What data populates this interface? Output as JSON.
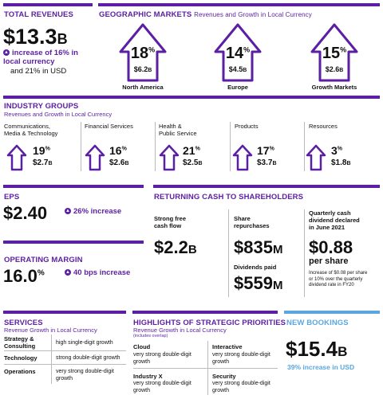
{
  "total_revenues": {
    "title": "TOTAL REVENUES",
    "value": "$13.3",
    "unit": "B",
    "increase": "increase of 16% in local currency",
    "usd": "and 21% in USD"
  },
  "geo": {
    "title": "GEOGRAPHIC MARKETS",
    "subtitle": "Revenues and Growth in Local Currency",
    "markets": [
      {
        "pct": "18",
        "amt": "$6.2",
        "unit": "B",
        "name": "North America"
      },
      {
        "pct": "14",
        "amt": "$4.5",
        "unit": "B",
        "name": "Europe"
      },
      {
        "pct": "15",
        "amt": "$2.6",
        "unit": "B",
        "name": "Growth Markets"
      }
    ]
  },
  "industry": {
    "title": "INDUSTRY GROUPS",
    "subtitle": "Revenues and Growth in Local Currency",
    "groups": [
      {
        "name_line1": "Communications,",
        "name_line2": "Media & Technology",
        "pct": "19",
        "amt": "$2.7",
        "unit": "B"
      },
      {
        "name_line1": "Financial Services",
        "name_line2": "",
        "pct": "16",
        "amt": "$2.6",
        "unit": "B"
      },
      {
        "name_line1": "Health &",
        "name_line2": "Public Service",
        "pct": "21",
        "amt": "$2.5",
        "unit": "B"
      },
      {
        "name_line1": "Products",
        "name_line2": "",
        "pct": "17",
        "amt": "$3.7",
        "unit": "B"
      },
      {
        "name_line1": "Resources",
        "name_line2": "",
        "pct": "3",
        "amt": "$1.8",
        "unit": "B"
      }
    ]
  },
  "eps": {
    "title": "EPS",
    "value": "$2.40",
    "increase": "26% increase"
  },
  "op_margin": {
    "title": "OPERATING MARGIN",
    "value": "16.0",
    "pct_sign": "%",
    "increase": "40 bps increase"
  },
  "cash": {
    "title": "RETURNING CASH TO SHAREHOLDERS",
    "fcf_label_1": "Strong free",
    "fcf_label_2": "cash flow",
    "fcf_value": "$2.2",
    "fcf_unit": "B",
    "rep_label_1": "Share",
    "rep_label_2": "repurchases",
    "rep_value": "$835",
    "rep_unit": "M",
    "div_label": "Dividends paid",
    "div_value": "$559",
    "div_unit": "M",
    "qd_label_1": "Quarterly cash",
    "qd_label_2": "dividend declared",
    "qd_label_3": "in June 2021",
    "qd_value": "$0.88",
    "qd_unit": "per share",
    "qd_note_1": "Increase of $0.08 per share",
    "qd_note_2": "or 10% over the quarterly",
    "qd_note_3": "dividend rate in FY20"
  },
  "services": {
    "title": "SERVICES",
    "subtitle": "Revenue Growth in Local Currency",
    "rows": [
      {
        "name_line1": "Strategy &",
        "name_line2": "Consulting",
        "desc_line1": "high single-digit growth",
        "desc_line2": ""
      },
      {
        "name_line1": "Technology",
        "name_line2": "",
        "desc_line1": "strong double-digit growth",
        "desc_line2": ""
      },
      {
        "name_line1": "Operations",
        "name_line2": "",
        "desc_line1": "very strong double-digit",
        "desc_line2": "growth"
      }
    ]
  },
  "strategic": {
    "title": "HIGHLIGHTS OF STRATEGIC PRIORITIES",
    "subtitle": "Revenue Growth in Local Currency",
    "note": "(includes overlap)",
    "items": [
      {
        "name": "Cloud",
        "desc_line1": "very strong double-digit",
        "desc_line2": "growth"
      },
      {
        "name": "Interactive",
        "desc_line1": "very strong double-digit",
        "desc_line2": "growth"
      },
      {
        "name": "Industry X",
        "desc_line1": "very strong double-digit",
        "desc_line2": "growth"
      },
      {
        "name": "Security",
        "desc_line1": "very strong double-digit",
        "desc_line2": "growth"
      }
    ]
  },
  "bookings": {
    "title": "NEW BOOKINGS",
    "value": "$15.4",
    "unit": "B",
    "increase": "39% increase in USD"
  },
  "colors": {
    "accent": "#5b1fa3",
    "blue": "#5aa7e0"
  }
}
